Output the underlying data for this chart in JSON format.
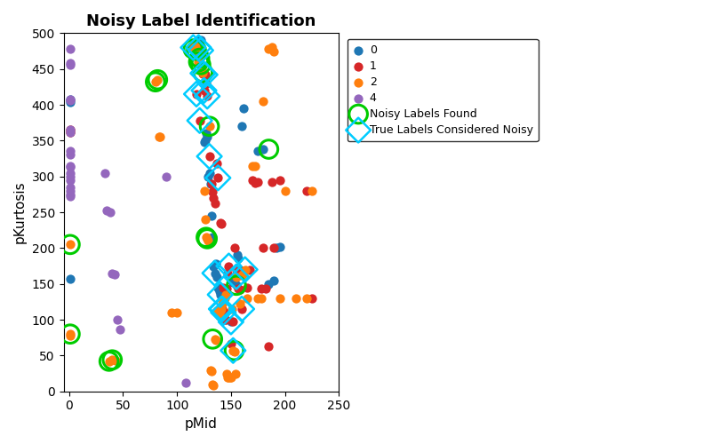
{
  "title": "Noisy Label Identification",
  "xlabel": "pMid",
  "ylabel": "pKurtosis",
  "xlim": [
    -5,
    250
  ],
  "ylim": [
    0,
    500
  ],
  "xticks": [
    0,
    50,
    100,
    150,
    200,
    250
  ],
  "yticks": [
    0,
    50,
    100,
    150,
    200,
    250,
    300,
    350,
    400,
    450,
    500
  ],
  "colors": {
    "0": "#1f77b4",
    "1": "#d62728",
    "2": "#ff7f0e",
    "4": "#9467bd"
  },
  "class0_x": [
    1,
    1,
    1,
    120,
    122,
    125,
    126,
    127,
    128,
    129,
    130,
    131,
    132,
    133,
    134,
    135,
    136,
    137,
    138,
    139,
    140,
    141,
    142,
    143,
    144,
    150,
    151,
    152,
    155,
    156,
    157,
    158,
    160,
    162,
    175,
    180,
    185,
    190,
    192,
    195
  ],
  "class0_y": [
    408,
    404,
    157,
    490,
    490,
    348,
    350,
    360,
    355,
    300,
    305,
    290,
    245,
    215,
    175,
    165,
    178,
    160,
    145,
    140,
    135,
    115,
    110,
    105,
    100,
    97,
    155,
    152,
    148,
    190,
    186,
    170,
    370,
    395,
    335,
    338,
    150,
    155,
    200,
    202
  ],
  "class1_x": [
    1,
    1,
    115,
    118,
    120,
    121,
    122,
    124,
    125,
    126,
    127,
    128,
    130,
    132,
    133,
    134,
    135,
    137,
    138,
    140,
    141,
    142,
    143,
    144,
    145,
    146,
    147,
    148,
    150,
    152,
    153,
    155,
    157,
    158,
    160,
    165,
    167,
    170,
    172,
    175,
    178,
    180,
    182,
    185,
    188,
    190,
    195,
    220,
    225
  ],
  "class1_y": [
    365,
    362,
    480,
    415,
    480,
    378,
    476,
    444,
    420,
    442,
    430,
    412,
    328,
    290,
    278,
    270,
    262,
    318,
    298,
    235,
    234,
    115,
    145,
    110,
    100,
    144,
    165,
    175,
    67,
    97,
    200,
    170,
    144,
    142,
    115,
    145,
    170,
    295,
    291,
    292,
    143,
    200,
    143,
    63,
    292,
    200,
    295,
    280,
    130
  ],
  "class2_x": [
    1,
    1,
    1,
    37,
    40,
    43,
    80,
    82,
    83,
    84,
    95,
    100,
    115,
    116,
    117,
    118,
    119,
    120,
    121,
    122,
    123,
    124,
    125,
    126,
    127,
    128,
    129,
    130,
    131,
    132,
    133,
    134,
    135,
    136,
    137,
    138,
    139,
    140,
    141,
    142,
    143,
    144,
    145,
    146,
    147,
    148,
    149,
    150,
    151,
    152,
    153,
    154,
    155,
    158,
    160,
    162,
    163,
    165,
    170,
    172,
    175,
    178,
    180,
    185,
    188,
    190,
    195,
    200,
    210,
    220,
    225
  ],
  "class2_y": [
    205,
    80,
    78,
    42,
    44,
    43,
    432,
    435,
    355,
    356,
    110,
    110,
    478,
    480,
    482,
    476,
    472,
    460,
    465,
    456,
    450,
    445,
    280,
    240,
    215,
    213,
    210,
    370,
    30,
    28,
    10,
    8,
    73,
    72,
    112,
    110,
    105,
    112,
    115,
    122,
    125,
    130,
    135,
    25,
    20,
    20,
    20,
    20,
    115,
    57,
    55,
    25,
    160,
    122,
    162,
    165,
    170,
    130,
    315,
    314,
    130,
    130,
    405,
    478,
    480,
    475,
    130,
    280,
    130,
    130,
    280
  ],
  "class4_x": [
    1,
    1,
    1,
    1,
    1,
    1,
    1,
    1,
    1,
    1,
    1,
    1,
    1,
    1,
    1,
    1,
    1,
    1,
    33,
    35,
    38,
    40,
    42,
    45,
    47,
    90,
    108
  ],
  "class4_y": [
    478,
    456,
    458,
    406,
    408,
    365,
    362,
    335,
    330,
    315,
    313,
    305,
    300,
    295,
    285,
    280,
    275,
    272,
    305,
    252,
    250,
    165,
    163,
    100,
    87,
    300,
    12
  ],
  "noisy_x": [
    1,
    1,
    37,
    40,
    80,
    82,
    115,
    118,
    120,
    121,
    122,
    124,
    127,
    128,
    130,
    133,
    153,
    155,
    185
  ],
  "noisy_y": [
    205,
    80,
    42,
    44,
    432,
    435,
    478,
    476,
    460,
    465,
    456,
    445,
    215,
    213,
    370,
    73,
    57,
    148,
    338
  ],
  "true_noisy_x": [
    115,
    118,
    120,
    121,
    122,
    124,
    125,
    126,
    128,
    130,
    135,
    138,
    140,
    141,
    142,
    143,
    148,
    150,
    152,
    155,
    160,
    163
  ],
  "true_noisy_y": [
    480,
    415,
    480,
    378,
    476,
    444,
    420,
    442,
    412,
    328,
    165,
    298,
    135,
    115,
    115,
    110,
    175,
    97,
    57,
    160,
    115,
    170
  ]
}
